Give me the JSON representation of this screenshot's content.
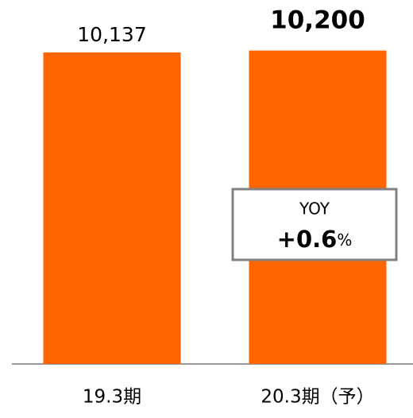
{
  "chart_data": {
    "type": "bar",
    "categories": [
      "19.3期",
      "20.3期（予）"
    ],
    "values": [
      10137,
      10200
    ],
    "value_labels": [
      "10,137",
      "10,200"
    ],
    "color": "#ff6600",
    "ylim": [
      0,
      10500
    ],
    "annotation": {
      "title": "YOY",
      "text": "+0.6",
      "unit": "%"
    }
  }
}
